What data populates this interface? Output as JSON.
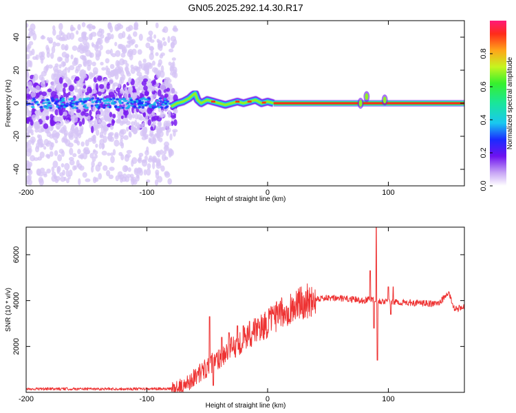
{
  "title": "GN05.2025.292.14.30.R17",
  "colors": {
    "signal": "#ee3333",
    "frame": "#000000",
    "scatter": "#7a1cf0",
    "scatter_light": "#d6c4f5"
  },
  "chart_data": [
    {
      "type": "heatmap",
      "xlabel": "Height of straight line (km)",
      "ylabel": "Frequency (Hz)",
      "xlim": [
        -200,
        163
      ],
      "ylim": [
        -50,
        50
      ],
      "xticks": [
        -200,
        -100,
        0,
        100
      ],
      "xtick_labels": [
        "-200",
        "-100",
        "0",
        "100"
      ],
      "yticks": [
        -40,
        -20,
        0,
        20,
        40
      ],
      "ytick_labels": [
        "-40",
        "-20",
        "0",
        "20",
        "40"
      ],
      "ridge_x": [
        -80,
        -75,
        -70,
        -65,
        -62,
        -60,
        -58,
        -55,
        -50,
        -45,
        -40,
        -35,
        -30,
        -25,
        -20,
        -15,
        -10,
        -5,
        0,
        5
      ],
      "ridge_y": [
        -2,
        0,
        1,
        3,
        5,
        6,
        2,
        0,
        2,
        1,
        0,
        -1,
        0,
        1,
        0,
        1,
        2,
        0,
        1,
        0
      ],
      "line_start": 5,
      "line_end": 163,
      "line_freq": 0,
      "bumps": [
        [
          77,
          0
        ],
        [
          82,
          4
        ],
        [
          97,
          2
        ]
      ],
      "scatter_xlim": [
        -200,
        -80
      ],
      "colorbar": {
        "label": "Normalized spectral amplitude",
        "range": [
          0,
          1
        ],
        "ticks": [
          0,
          0.2,
          0.4,
          0.6,
          0.8
        ],
        "tick_labels": [
          "0.0",
          "0.2",
          "0.4",
          "0.6",
          "0.8"
        ]
      }
    },
    {
      "type": "line",
      "xlabel": "Height of straight line (km)",
      "ylabel": "SNR (10 * v/v)",
      "xlim": [
        -200,
        163
      ],
      "ylim": [
        0,
        7200
      ],
      "xticks": [
        -200,
        -100,
        0,
        100
      ],
      "xtick_labels": [
        "-200",
        "-100",
        "0",
        "100"
      ],
      "yticks": [
        2000,
        4000,
        6000
      ],
      "ytick_labels": [
        "2000",
        "4000",
        "6000"
      ],
      "trend_x": [
        -200,
        -80,
        -70,
        -60,
        -50,
        -40,
        -30,
        -20,
        -10,
        0,
        10,
        20,
        30,
        40,
        60,
        80,
        85,
        90,
        100,
        120,
        140,
        145,
        150,
        155,
        163
      ],
      "trend_y": [
        150,
        150,
        250,
        700,
        1100,
        1500,
        1900,
        2300,
        2700,
        3000,
        3400,
        3700,
        3950,
        4100,
        4100,
        4000,
        4100,
        4000,
        3950,
        3900,
        3850,
        4050,
        4350,
        3600,
        3750
      ],
      "spikes": [
        [
          -48,
          3300
        ],
        [
          -45,
          300
        ],
        [
          -38,
          2400
        ],
        [
          -32,
          2600
        ],
        [
          -25,
          2900
        ],
        [
          -20,
          2900
        ],
        [
          -15,
          3100
        ],
        [
          -8,
          3200
        ],
        [
          5,
          3400
        ],
        [
          85,
          5300
        ],
        [
          88,
          2800
        ],
        [
          90,
          7200
        ],
        [
          91,
          1400
        ],
        [
          100,
          4600
        ],
        [
          102,
          3400
        ],
        [
          104,
          4600
        ]
      ]
    }
  ]
}
